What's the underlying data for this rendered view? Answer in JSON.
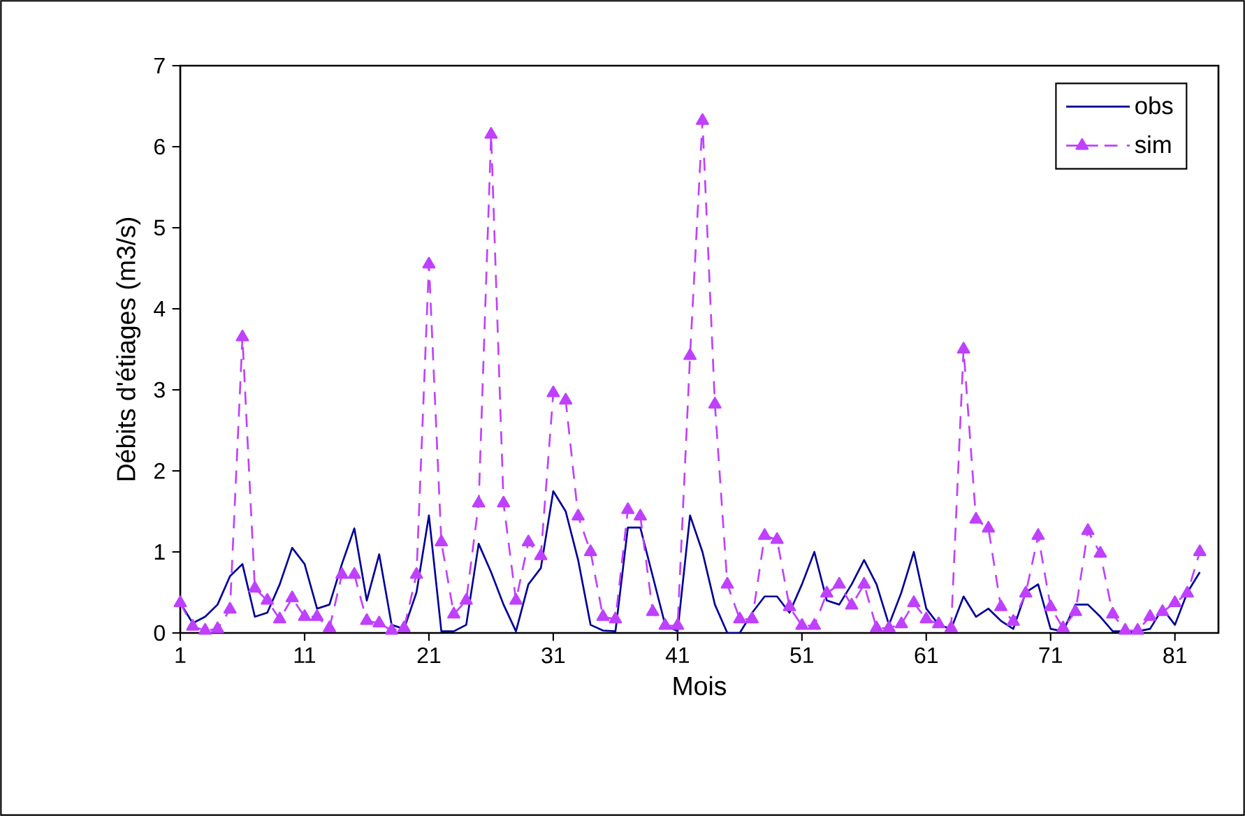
{
  "chart_data": {
    "type": "line",
    "xlabel": "Mois",
    "ylabel": "Débits d'étiages (m3/s)",
    "x": [
      1,
      2,
      3,
      4,
      5,
      6,
      7,
      8,
      9,
      10,
      11,
      12,
      13,
      14,
      15,
      16,
      17,
      18,
      19,
      20,
      21,
      22,
      23,
      24,
      25,
      26,
      27,
      28,
      29,
      30,
      31,
      32,
      33,
      34,
      35,
      36,
      37,
      38,
      39,
      40,
      41,
      42,
      43,
      44,
      45,
      46,
      47,
      48,
      49,
      50,
      51,
      52,
      53,
      54,
      55,
      56,
      57,
      58,
      59,
      60,
      61,
      62,
      63,
      64,
      65,
      66,
      67,
      68,
      69,
      70,
      71,
      72,
      73,
      74,
      75,
      76,
      77,
      78,
      79,
      80,
      81,
      82,
      83
    ],
    "xlim": [
      1,
      84.5
    ],
    "xticks": [
      1,
      11,
      21,
      31,
      41,
      51,
      61,
      71,
      81
    ],
    "ylim": [
      0,
      7
    ],
    "yticks": [
      0,
      1,
      2,
      3,
      4,
      5,
      6,
      7
    ],
    "legend": "top right",
    "series": [
      {
        "name": "obs",
        "color": "#000099",
        "marker": "none",
        "line_style": "solid",
        "values": [
          0.37,
          0.12,
          0.2,
          0.35,
          0.7,
          0.85,
          0.2,
          0.25,
          0.6,
          1.05,
          0.85,
          0.3,
          0.35,
          0.85,
          1.29,
          0.4,
          0.97,
          0.1,
          0.05,
          0.5,
          1.45,
          0.02,
          0.02,
          0.1,
          1.1,
          0.75,
          0.35,
          0.02,
          0.6,
          0.8,
          1.75,
          1.5,
          0.9,
          0.1,
          0.03,
          0.02,
          1.3,
          1.3,
          0.7,
          0.1,
          0.02,
          1.45,
          1.0,
          0.35,
          0.0,
          0.0,
          0.25,
          0.45,
          0.45,
          0.25,
          0.6,
          1.0,
          0.4,
          0.35,
          0.6,
          0.9,
          0.6,
          0.1,
          0.5,
          1.0,
          0.3,
          0.1,
          0.05,
          0.45,
          0.2,
          0.3,
          0.15,
          0.05,
          0.5,
          0.6,
          0.05,
          0.02,
          0.35,
          0.35,
          0.2,
          0.02,
          0.02,
          0.02,
          0.05,
          0.3,
          0.1,
          0.5,
          0.75
        ]
      },
      {
        "name": "sim",
        "color": "#bf40ff",
        "marker": "triangle",
        "line_style": "dashed",
        "values": [
          0.37,
          0.08,
          0.03,
          0.05,
          0.29,
          3.65,
          0.55,
          0.4,
          0.17,
          0.43,
          0.2,
          0.2,
          0.06,
          0.72,
          0.72,
          0.15,
          0.12,
          0.03,
          0.06,
          0.72,
          4.55,
          1.12,
          0.23,
          0.4,
          1.6,
          6.15,
          1.6,
          0.4,
          1.12,
          0.95,
          2.96,
          2.87,
          1.44,
          1.0,
          0.2,
          0.17,
          1.52,
          1.44,
          0.26,
          0.09,
          0.09,
          3.42,
          6.32,
          2.82,
          0.6,
          0.17,
          0.17,
          1.2,
          1.15,
          0.32,
          0.09,
          0.09,
          0.49,
          0.6,
          0.34,
          0.6,
          0.06,
          0.06,
          0.11,
          0.37,
          0.17,
          0.11,
          0.06,
          3.5,
          1.4,
          1.29,
          0.32,
          0.14,
          0.49,
          1.2,
          0.32,
          0.06,
          0.26,
          1.26,
          0.98,
          0.23,
          0.03,
          0.03,
          0.2,
          0.26,
          0.37,
          0.49,
          1.0
        ]
      }
    ]
  }
}
